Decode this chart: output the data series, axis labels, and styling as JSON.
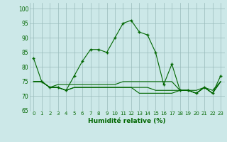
{
  "x": [
    0,
    1,
    2,
    3,
    4,
    5,
    6,
    7,
    8,
    9,
    10,
    11,
    12,
    13,
    14,
    15,
    16,
    17,
    18,
    19,
    20,
    21,
    22,
    23
  ],
  "line1": [
    83,
    75,
    73,
    73,
    72,
    77,
    82,
    86,
    86,
    85,
    90,
    95,
    96,
    92,
    91,
    85,
    74,
    81,
    72,
    72,
    71,
    73,
    71,
    77
  ],
  "line2": [
    75,
    75,
    73,
    74,
    74,
    74,
    74,
    74,
    74,
    74,
    74,
    75,
    75,
    75,
    75,
    75,
    75,
    75,
    72,
    72,
    72,
    73,
    72,
    75
  ],
  "line3": [
    75,
    75,
    73,
    73,
    72,
    73,
    73,
    73,
    73,
    73,
    73,
    73,
    73,
    73,
    73,
    72,
    72,
    72,
    72,
    72,
    71,
    73,
    71,
    75
  ],
  "line4": [
    75,
    75,
    73,
    73,
    72,
    73,
    73,
    73,
    73,
    73,
    73,
    73,
    73,
    71,
    71,
    71,
    71,
    71,
    72,
    72,
    71,
    73,
    71,
    75
  ],
  "bg_color": "#cce8e8",
  "grid_color": "#99bbbb",
  "line_color": "#006600",
  "xlabel": "Humidité relative (%)",
  "xlabel_color": "#006600",
  "xlim": [
    -0.5,
    23.5
  ],
  "ylim": [
    65,
    102
  ],
  "yticks": [
    65,
    70,
    75,
    80,
    85,
    90,
    95,
    100
  ],
  "xticks": [
    0,
    1,
    2,
    3,
    4,
    5,
    6,
    7,
    8,
    9,
    10,
    11,
    12,
    13,
    14,
    15,
    16,
    17,
    18,
    19,
    20,
    21,
    22,
    23
  ],
  "tick_color": "#006600",
  "marker": "+"
}
